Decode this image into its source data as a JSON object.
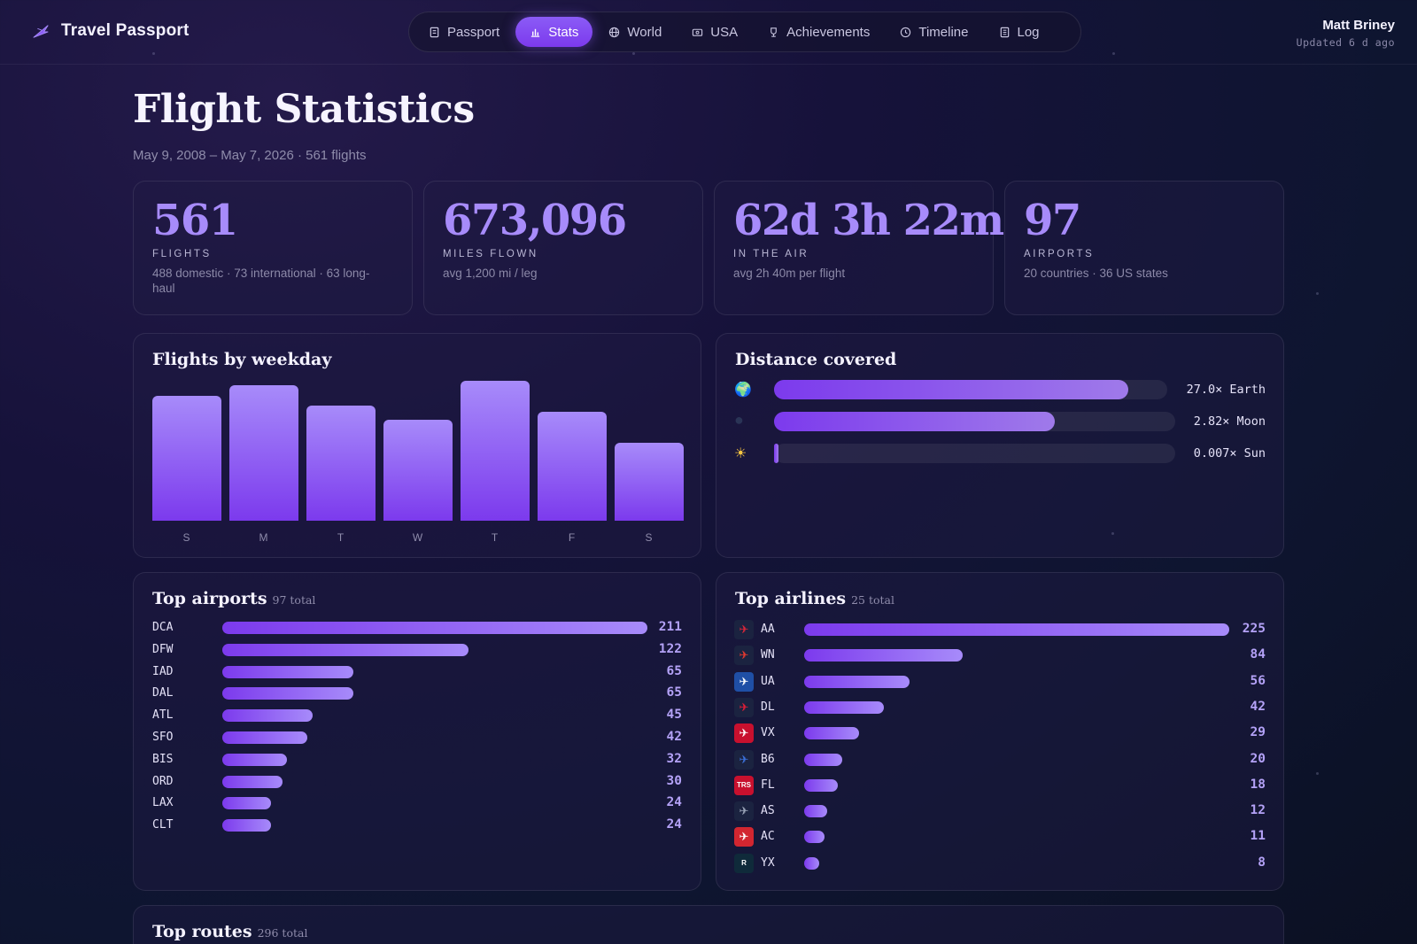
{
  "app": {
    "name": "Travel Passport"
  },
  "nav": [
    {
      "label": "Passport",
      "icon": "passport-icon",
      "active": false
    },
    {
      "label": "Stats",
      "icon": "bar-chart-icon",
      "active": true
    },
    {
      "label": "World",
      "icon": "globe-icon",
      "active": false
    },
    {
      "label": "USA",
      "icon": "flag-icon",
      "active": false
    },
    {
      "label": "Achievements",
      "icon": "trophy-icon",
      "active": false
    },
    {
      "label": "Timeline",
      "icon": "clock-icon",
      "active": false
    },
    {
      "label": "Log",
      "icon": "log-icon",
      "active": false
    }
  ],
  "user": {
    "name": "Matt Briney",
    "updated": "Updated 6 d ago"
  },
  "page": {
    "title": "Flight Statistics",
    "subtitle": "May 9, 2008 – May 7, 2026 · 561 flights"
  },
  "stats": [
    {
      "value": "561",
      "label": "FLIGHTS",
      "detail": "488 domestic · 73 international · 63 long-haul"
    },
    {
      "value": "673,096",
      "label": "MILES FLOWN",
      "detail": "avg 1,200 mi / leg"
    },
    {
      "value": "62d 3h 22m",
      "label": "IN THE AIR",
      "detail": "avg 2h 40m per flight"
    },
    {
      "value": "97",
      "label": "AIRPORTS",
      "detail": "20 countries · 36 US states"
    }
  ],
  "weekday": {
    "title": "Flights by weekday",
    "labels": [
      "S",
      "M",
      "T",
      "W",
      "T",
      "F",
      "S"
    ],
    "relative_levels": [
      0.89,
      0.97,
      0.82,
      0.72,
      1.0,
      0.78,
      0.56
    ]
  },
  "distance": {
    "title": "Distance covered",
    "rows": [
      {
        "icon": "earth-icon",
        "glyph": "🌍",
        "value": "27.0× Earth",
        "fill": 0.9
      },
      {
        "icon": "moon-icon",
        "glyph": "●",
        "value": "2.82× Moon",
        "fill": 0.7
      },
      {
        "icon": "sun-icon",
        "glyph": "☀",
        "value": "0.007× Sun",
        "fill": 0.01
      }
    ]
  },
  "airports": {
    "title": "Top airports",
    "total": "97 total",
    "rows": [
      {
        "code": "DCA",
        "count": "211",
        "value": 211
      },
      {
        "code": "DFW",
        "count": "122",
        "value": 122
      },
      {
        "code": "IAD",
        "count": "65",
        "value": 65
      },
      {
        "code": "DAL",
        "count": "65",
        "value": 65
      },
      {
        "code": "ATL",
        "count": "45",
        "value": 45
      },
      {
        "code": "SFO",
        "count": "42",
        "value": 42
      },
      {
        "code": "BIS",
        "count": "32",
        "value": 32
      },
      {
        "code": "ORD",
        "count": "30",
        "value": 30
      },
      {
        "code": "LAX",
        "count": "24",
        "value": 24
      },
      {
        "code": "CLT",
        "count": "24",
        "value": 24
      }
    ]
  },
  "airlines": {
    "title": "Top airlines",
    "total": "25 total",
    "rows": [
      {
        "code": "AA",
        "count": "225",
        "value": 225,
        "logo": "american-logo",
        "bg": "#1b2340",
        "fg": "#d8263a"
      },
      {
        "code": "WN",
        "count": "84",
        "value": 84,
        "logo": "southwest-logo",
        "bg": "#1b2340",
        "fg": "#e2392f"
      },
      {
        "code": "UA",
        "count": "56",
        "value": 56,
        "logo": "united-logo",
        "bg": "#1f4fa6",
        "fg": "#ffffff"
      },
      {
        "code": "DL",
        "count": "42",
        "value": 42,
        "logo": "delta-logo",
        "bg": "#1b2340",
        "fg": "#e01e37"
      },
      {
        "code": "VX",
        "count": "29",
        "value": 29,
        "logo": "virgin-logo",
        "bg": "#c8102e",
        "fg": "#ffffff"
      },
      {
        "code": "B6",
        "count": "20",
        "value": 20,
        "logo": "jetblue-logo",
        "bg": "#1b2340",
        "fg": "#3b6fd8"
      },
      {
        "code": "FL",
        "count": "18",
        "value": 18,
        "logo": "airtran-logo",
        "bg": "#c8102e",
        "fg": "#ffffff",
        "text": "TRS"
      },
      {
        "code": "AS",
        "count": "12",
        "value": 12,
        "logo": "alaska-logo",
        "bg": "#1b2340",
        "fg": "#9aa4b8"
      },
      {
        "code": "AC",
        "count": "11",
        "value": 11,
        "logo": "aircanada-logo",
        "bg": "#d22630",
        "fg": "#ffffff"
      },
      {
        "code": "YX",
        "count": "8",
        "value": 8,
        "logo": "republic-logo",
        "bg": "#0f2a3a",
        "fg": "#ffffff",
        "text": "R"
      }
    ]
  },
  "routes": {
    "title": "Top routes",
    "total": "296 total"
  },
  "colors": {
    "accent": "#8b5cf6",
    "accent_light": "#a78bfa",
    "count_text": "#b4a2f7"
  }
}
